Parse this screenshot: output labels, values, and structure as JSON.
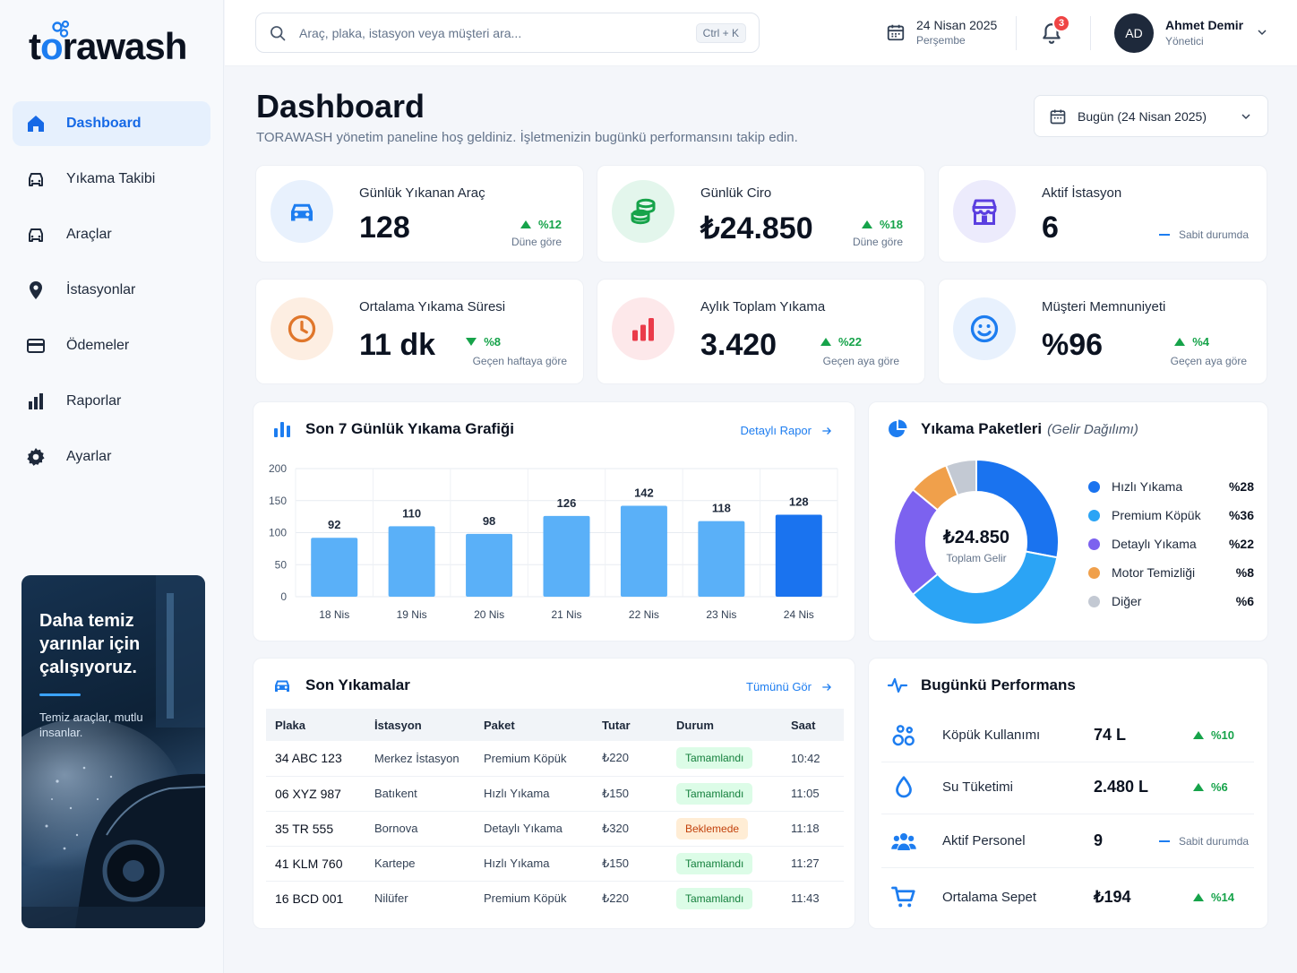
{
  "brand": {
    "logo_pre": "t",
    "logo_o": "o",
    "logo_post": "rawash",
    "accent": "#1d7df0"
  },
  "sidebar": {
    "items": [
      {
        "label": "Dashboard",
        "icon": "home-icon",
        "active": true
      },
      {
        "label": "Yıkama Takibi",
        "icon": "car-icon"
      },
      {
        "label": "Araçlar",
        "icon": "car-icon"
      },
      {
        "label": "İstasyonlar",
        "icon": "location-pin-icon"
      },
      {
        "label": "Ödemeler",
        "icon": "credit-card-icon"
      },
      {
        "label": "Raporlar",
        "icon": "bar-chart-icon"
      },
      {
        "label": "Ayarlar",
        "icon": "gear-icon"
      }
    ],
    "promo": {
      "title": "Daha temiz yarınlar için çalışıyoruz.",
      "subtitle": "Temiz araçlar, mutlu insanlar."
    }
  },
  "topbar": {
    "search_placeholder": "Araç, plaka, istasyon veya müşteri ara...",
    "shortcut": "Ctrl + K",
    "date": "24 Nisan 2025",
    "weekday": "Perşembe",
    "notifications": "3",
    "user": {
      "initials": "AD",
      "name": "Ahmet Demir",
      "role": "Yönetici"
    }
  },
  "page": {
    "title": "Dashboard",
    "subtitle": "TORAWASH yönetim paneline hoş geldiniz. İşletmenizin bugünkü performansını takip edin.",
    "date_filter": "Bugün (24 Nisan 2025)"
  },
  "kpis": [
    {
      "label": "Günlük Yıkanan Araç",
      "value": "128",
      "change": "%12",
      "compare": "Düne göre",
      "trend": "up",
      "icon": "car-icon",
      "color": "#1d7df0",
      "bg": "#e8f1fd"
    },
    {
      "label": "Günlük Ciro",
      "value": "₺24.850",
      "change": "%18",
      "compare": "Düne göre",
      "trend": "up",
      "icon": "coins-icon",
      "color": "#16a34a",
      "bg": "#e3f6ec"
    },
    {
      "label": "Aktif İstasyon",
      "value": "6",
      "change": "",
      "compare": "Sabit durumda",
      "trend": "flat",
      "icon": "store-icon",
      "color": "#5b3fe0",
      "bg": "#ecebfc"
    },
    {
      "label": "Ortalama Yıkama Süresi",
      "value": "11 dk",
      "change": "%8",
      "compare": "Geçen haftaya göre",
      "trend": "down",
      "icon": "clock-icon",
      "color": "#e0762b",
      "bg": "#fdeee2"
    },
    {
      "label": "Aylık Toplam Yıkama",
      "value": "3.420",
      "change": "%22",
      "compare": "Geçen aya göre",
      "trend": "up",
      "icon": "bar-chart-icon",
      "color": "#ea3b4a",
      "bg": "#fde8ea"
    },
    {
      "label": "Müşteri Memnuniyeti",
      "value": "%96",
      "change": "%4",
      "compare": "Geçen aya göre",
      "trend": "up",
      "icon": "smile-icon",
      "color": "#1d7df0",
      "bg": "#e8f1fd"
    }
  ],
  "weekly": {
    "title": "Son 7 Günlük Yıkama Grafiği",
    "link": "Detaylı Rapor"
  },
  "packages": {
    "title": "Yıkama Paketleri",
    "subtitle": "(Gelir Dağılımı)",
    "center_value": "₺24.850",
    "center_label": "Toplam Gelir"
  },
  "recent": {
    "title": "Son Yıkamalar",
    "link": "Tümünü Gör",
    "columns": [
      "Plaka",
      "İstasyon",
      "Paket",
      "Tutar",
      "Durum",
      "Saat"
    ],
    "rows": [
      {
        "plate": "34 ABC 123",
        "station": "Merkez İstasyon",
        "package": "Premium Köpük",
        "amount": "₺220",
        "status": "Tamamlandı",
        "status_type": "ok",
        "time": "10:42"
      },
      {
        "plate": "06 XYZ 987",
        "station": "Batıkent",
        "package": "Hızlı Yıkama",
        "amount": "₺150",
        "status": "Tamamlandı",
        "status_type": "ok",
        "time": "11:05"
      },
      {
        "plate": "35 TR 555",
        "station": "Bornova",
        "package": "Detaylı Yıkama",
        "amount": "₺320",
        "status": "Beklemede",
        "status_type": "wait",
        "time": "11:18"
      },
      {
        "plate": "41 KLM 760",
        "station": "Kartepe",
        "package": "Hızlı Yıkama",
        "amount": "₺150",
        "status": "Tamamlandı",
        "status_type": "ok",
        "time": "11:27"
      },
      {
        "plate": "16 BCD 001",
        "station": "Nilüfer",
        "package": "Premium Köpük",
        "amount": "₺220",
        "status": "Tamamlandı",
        "status_type": "ok",
        "time": "11:43"
      }
    ]
  },
  "performance": {
    "title": "Bugünkü Performans",
    "rows": [
      {
        "label": "Köpük Kullanımı",
        "value": "74 L",
        "change": "%10",
        "trend": "up",
        "icon": "bubbles-icon"
      },
      {
        "label": "Su Tüketimi",
        "value": "2.480 L",
        "change": "%6",
        "trend": "up",
        "icon": "water-drop-icon"
      },
      {
        "label": "Aktif Personel",
        "value": "9",
        "change": "Sabit durumda",
        "trend": "flat",
        "icon": "people-icon"
      },
      {
        "label": "Ortalama Sepet",
        "value": "₺194",
        "change": "%14",
        "trend": "up",
        "icon": "cart-icon"
      }
    ]
  },
  "chart_data": [
    {
      "type": "bar",
      "title": "Son 7 Günlük Yıkama Grafiği",
      "categories": [
        "18 Nis",
        "19 Nis",
        "20 Nis",
        "21 Nis",
        "22 Nis",
        "23 Nis",
        "24 Nis"
      ],
      "values": [
        92,
        110,
        98,
        126,
        142,
        118,
        128
      ],
      "ylim": [
        0,
        200
      ],
      "yticks": [
        0,
        50,
        100,
        150,
        200
      ],
      "grid": true,
      "color": "#5ab0f8",
      "highlight_color": "#1a73ef"
    },
    {
      "type": "pie",
      "title": "Yıkama Paketleri",
      "categories": [
        "Hızlı Yıkama",
        "Premium Köpük",
        "Detaylı Yıkama",
        "Motor Temizliği",
        "Diğer"
      ],
      "values": [
        28,
        36,
        22,
        8,
        6
      ],
      "labels": [
        "%28",
        "%36",
        "%22",
        "%8",
        "%6"
      ],
      "colors": [
        "#1a73ef",
        "#2ba4f5",
        "#7c62ef",
        "#f0a04b",
        "#c3c9d3"
      ],
      "legend": "right"
    }
  ]
}
